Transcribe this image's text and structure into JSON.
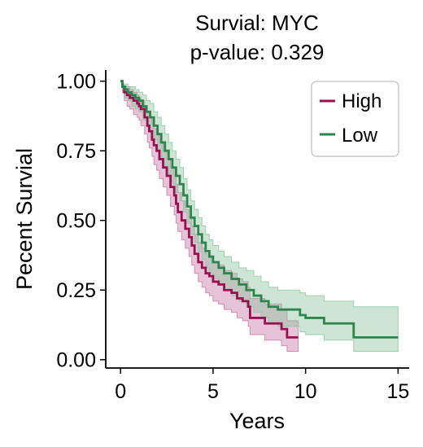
{
  "chart_data": {
    "type": "line",
    "title": "Survial: MYC",
    "subtitle": "p-value: 0.329",
    "xlabel": "Years",
    "ylabel": "Pecent Survial",
    "xlim": [
      -0.8,
      15.6
    ],
    "ylim": [
      -0.03,
      1.04
    ],
    "xticks": [
      0,
      5,
      10,
      15
    ],
    "xtick_labels": [
      "0",
      "5",
      "10",
      "15"
    ],
    "yticks": [
      0,
      0.25,
      0.5,
      0.75,
      1.0
    ],
    "ytick_labels": [
      "0.00",
      "0.25",
      "0.50",
      "0.75",
      "1.00"
    ],
    "grid": false,
    "legend_position": "top-right",
    "series": [
      {
        "name": "High",
        "color": "#99104f",
        "band_color": "#c87ba4",
        "points": [
          [
            0,
            1.0
          ],
          [
            0.1,
            0.98
          ],
          [
            0.2,
            0.96
          ],
          [
            0.35,
            0.95
          ],
          [
            0.5,
            0.94
          ],
          [
            0.7,
            0.93
          ],
          [
            0.9,
            0.92
          ],
          [
            1.0,
            0.91
          ],
          [
            1.1,
            0.9
          ],
          [
            1.3,
            0.87
          ],
          [
            1.45,
            0.84
          ],
          [
            1.55,
            0.82
          ],
          [
            1.7,
            0.79
          ],
          [
            1.8,
            0.77
          ],
          [
            1.95,
            0.75
          ],
          [
            2.1,
            0.72
          ],
          [
            2.3,
            0.69
          ],
          [
            2.5,
            0.66
          ],
          [
            2.7,
            0.62
          ],
          [
            2.9,
            0.59
          ],
          [
            3.0,
            0.56
          ],
          [
            3.1,
            0.53
          ],
          [
            3.3,
            0.5
          ],
          [
            3.5,
            0.47
          ],
          [
            3.7,
            0.44
          ],
          [
            3.85,
            0.41
          ],
          [
            4.0,
            0.38
          ],
          [
            4.2,
            0.35
          ],
          [
            4.4,
            0.33
          ],
          [
            4.6,
            0.31
          ],
          [
            4.8,
            0.3
          ],
          [
            5.0,
            0.28
          ],
          [
            5.3,
            0.27
          ],
          [
            5.6,
            0.25
          ],
          [
            6.0,
            0.24
          ],
          [
            6.3,
            0.22
          ],
          [
            6.6,
            0.21
          ],
          [
            6.9,
            0.19
          ],
          [
            7.0,
            0.15
          ],
          [
            7.6,
            0.15
          ],
          [
            7.8,
            0.13
          ],
          [
            8.7,
            0.11
          ],
          [
            9.0,
            0.08
          ],
          [
            9.6,
            0.08
          ]
        ],
        "lower": [
          [
            0,
            1.0
          ],
          [
            0.1,
            0.96
          ],
          [
            0.2,
            0.93
          ],
          [
            0.35,
            0.91
          ],
          [
            0.5,
            0.9
          ],
          [
            0.7,
            0.88
          ],
          [
            0.9,
            0.87
          ],
          [
            1.0,
            0.86
          ],
          [
            1.1,
            0.84
          ],
          [
            1.3,
            0.81
          ],
          [
            1.45,
            0.78
          ],
          [
            1.55,
            0.76
          ],
          [
            1.7,
            0.73
          ],
          [
            1.8,
            0.7
          ],
          [
            1.95,
            0.68
          ],
          [
            2.1,
            0.65
          ],
          [
            2.3,
            0.62
          ],
          [
            2.5,
            0.59
          ],
          [
            2.7,
            0.55
          ],
          [
            2.9,
            0.52
          ],
          [
            3.0,
            0.49
          ],
          [
            3.1,
            0.46
          ],
          [
            3.3,
            0.43
          ],
          [
            3.5,
            0.4
          ],
          [
            3.7,
            0.37
          ],
          [
            3.85,
            0.34
          ],
          [
            4.0,
            0.31
          ],
          [
            4.2,
            0.28
          ],
          [
            4.4,
            0.26
          ],
          [
            4.6,
            0.24
          ],
          [
            4.8,
            0.23
          ],
          [
            5.0,
            0.21
          ],
          [
            5.3,
            0.2
          ],
          [
            5.6,
            0.18
          ],
          [
            6.0,
            0.17
          ],
          [
            6.3,
            0.15
          ],
          [
            6.6,
            0.14
          ],
          [
            6.9,
            0.12
          ],
          [
            7.0,
            0.09
          ],
          [
            7.6,
            0.09
          ],
          [
            7.8,
            0.07
          ],
          [
            8.7,
            0.05
          ],
          [
            9.0,
            0.03
          ],
          [
            9.6,
            0.03
          ]
        ],
        "upper": [
          [
            0,
            1.0
          ],
          [
            0.1,
            0.99
          ],
          [
            0.2,
            0.98
          ],
          [
            0.35,
            0.98
          ],
          [
            0.5,
            0.97
          ],
          [
            0.7,
            0.96
          ],
          [
            0.9,
            0.95
          ],
          [
            1.0,
            0.94
          ],
          [
            1.1,
            0.93
          ],
          [
            1.3,
            0.91
          ],
          [
            1.45,
            0.89
          ],
          [
            1.55,
            0.87
          ],
          [
            1.7,
            0.85
          ],
          [
            1.8,
            0.83
          ],
          [
            1.95,
            0.81
          ],
          [
            2.1,
            0.78
          ],
          [
            2.3,
            0.75
          ],
          [
            2.5,
            0.72
          ],
          [
            2.7,
            0.69
          ],
          [
            2.9,
            0.66
          ],
          [
            3.0,
            0.63
          ],
          [
            3.1,
            0.6
          ],
          [
            3.3,
            0.57
          ],
          [
            3.5,
            0.54
          ],
          [
            3.7,
            0.51
          ],
          [
            3.85,
            0.48
          ],
          [
            4.0,
            0.45
          ],
          [
            4.2,
            0.42
          ],
          [
            4.4,
            0.4
          ],
          [
            4.6,
            0.38
          ],
          [
            4.8,
            0.37
          ],
          [
            5.0,
            0.35
          ],
          [
            5.3,
            0.34
          ],
          [
            5.6,
            0.32
          ],
          [
            6.0,
            0.31
          ],
          [
            6.3,
            0.29
          ],
          [
            6.6,
            0.28
          ],
          [
            6.9,
            0.26
          ],
          [
            7.0,
            0.22
          ],
          [
            7.6,
            0.22
          ],
          [
            7.8,
            0.2
          ],
          [
            8.7,
            0.18
          ],
          [
            9.0,
            0.14
          ],
          [
            9.6,
            0.14
          ]
        ]
      },
      {
        "name": "Low",
        "color": "#2e844f",
        "band_color": "#8ec6a2",
        "points": [
          [
            0,
            1.0
          ],
          [
            0.1,
            0.98
          ],
          [
            0.25,
            0.97
          ],
          [
            0.4,
            0.96
          ],
          [
            0.6,
            0.95
          ],
          [
            0.8,
            0.94
          ],
          [
            1.0,
            0.93
          ],
          [
            1.2,
            0.91
          ],
          [
            1.4,
            0.89
          ],
          [
            1.6,
            0.87
          ],
          [
            1.8,
            0.84
          ],
          [
            2.0,
            0.81
          ],
          [
            2.2,
            0.78
          ],
          [
            2.4,
            0.75
          ],
          [
            2.6,
            0.72
          ],
          [
            2.8,
            0.69
          ],
          [
            3.0,
            0.66
          ],
          [
            3.2,
            0.63
          ],
          [
            3.4,
            0.59
          ],
          [
            3.6,
            0.55
          ],
          [
            3.8,
            0.51
          ],
          [
            4.0,
            0.48
          ],
          [
            4.2,
            0.45
          ],
          [
            4.4,
            0.42
          ],
          [
            4.6,
            0.39
          ],
          [
            4.8,
            0.37
          ],
          [
            5.0,
            0.35
          ],
          [
            5.3,
            0.33
          ],
          [
            5.6,
            0.31
          ],
          [
            6.0,
            0.29
          ],
          [
            6.4,
            0.27
          ],
          [
            6.8,
            0.25
          ],
          [
            7.2,
            0.23
          ],
          [
            7.6,
            0.21
          ],
          [
            8.0,
            0.19
          ],
          [
            8.5,
            0.18
          ],
          [
            9.4,
            0.18
          ],
          [
            9.7,
            0.16
          ],
          [
            10.0,
            0.15
          ],
          [
            11.0,
            0.13
          ],
          [
            12.6,
            0.08
          ],
          [
            15.0,
            0.08
          ]
        ],
        "lower": [
          [
            0,
            1.0
          ],
          [
            0.1,
            0.96
          ],
          [
            0.25,
            0.94
          ],
          [
            0.4,
            0.93
          ],
          [
            0.6,
            0.91
          ],
          [
            0.8,
            0.9
          ],
          [
            1.0,
            0.89
          ],
          [
            1.2,
            0.86
          ],
          [
            1.4,
            0.84
          ],
          [
            1.6,
            0.82
          ],
          [
            1.8,
            0.79
          ],
          [
            2.0,
            0.75
          ],
          [
            2.2,
            0.72
          ],
          [
            2.4,
            0.69
          ],
          [
            2.6,
            0.66
          ],
          [
            2.8,
            0.63
          ],
          [
            3.0,
            0.6
          ],
          [
            3.2,
            0.57
          ],
          [
            3.4,
            0.53
          ],
          [
            3.6,
            0.49
          ],
          [
            3.8,
            0.45
          ],
          [
            4.0,
            0.42
          ],
          [
            4.2,
            0.39
          ],
          [
            4.4,
            0.36
          ],
          [
            4.6,
            0.33
          ],
          [
            4.8,
            0.31
          ],
          [
            5.0,
            0.29
          ],
          [
            5.3,
            0.27
          ],
          [
            5.6,
            0.25
          ],
          [
            6.0,
            0.23
          ],
          [
            6.4,
            0.21
          ],
          [
            6.8,
            0.19
          ],
          [
            7.2,
            0.17
          ],
          [
            7.6,
            0.15
          ],
          [
            8.0,
            0.13
          ],
          [
            8.5,
            0.12
          ],
          [
            9.4,
            0.12
          ],
          [
            9.7,
            0.1
          ],
          [
            10.0,
            0.09
          ],
          [
            11.0,
            0.07
          ],
          [
            12.6,
            0.03
          ],
          [
            15.0,
            0.03
          ]
        ],
        "upper": [
          [
            0,
            1.0
          ],
          [
            0.1,
            0.99
          ],
          [
            0.25,
            0.99
          ],
          [
            0.4,
            0.98
          ],
          [
            0.6,
            0.98
          ],
          [
            0.8,
            0.97
          ],
          [
            1.0,
            0.96
          ],
          [
            1.2,
            0.95
          ],
          [
            1.4,
            0.93
          ],
          [
            1.6,
            0.92
          ],
          [
            1.8,
            0.89
          ],
          [
            2.0,
            0.87
          ],
          [
            2.2,
            0.84
          ],
          [
            2.4,
            0.81
          ],
          [
            2.6,
            0.78
          ],
          [
            2.8,
            0.75
          ],
          [
            3.0,
            0.72
          ],
          [
            3.2,
            0.69
          ],
          [
            3.4,
            0.65
          ],
          [
            3.6,
            0.61
          ],
          [
            3.8,
            0.57
          ],
          [
            4.0,
            0.54
          ],
          [
            4.2,
            0.51
          ],
          [
            4.4,
            0.48
          ],
          [
            4.6,
            0.45
          ],
          [
            4.8,
            0.43
          ],
          [
            5.0,
            0.41
          ],
          [
            5.3,
            0.39
          ],
          [
            5.6,
            0.37
          ],
          [
            6.0,
            0.35
          ],
          [
            6.4,
            0.33
          ],
          [
            6.8,
            0.32
          ],
          [
            7.2,
            0.3
          ],
          [
            7.6,
            0.28
          ],
          [
            8.0,
            0.26
          ],
          [
            8.5,
            0.25
          ],
          [
            9.4,
            0.25
          ],
          [
            9.7,
            0.24
          ],
          [
            10.0,
            0.23
          ],
          [
            11.0,
            0.21
          ],
          [
            12.6,
            0.19
          ],
          [
            15.0,
            0.19
          ]
        ]
      }
    ]
  }
}
